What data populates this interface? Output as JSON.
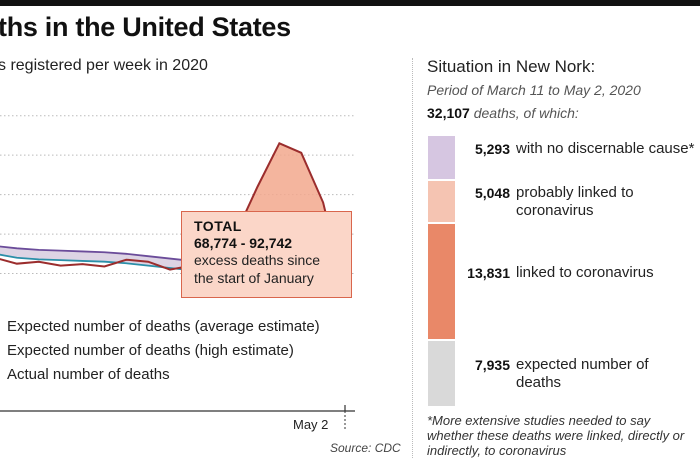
{
  "header": {
    "title": "ths in the United States",
    "subtitle": "s registered per week in 2020"
  },
  "total_box": {
    "title": "TOTAL",
    "range": "68,774 - 92,742",
    "line1": "excess deaths since",
    "line2": "the start of January"
  },
  "legend": [
    {
      "label": "Expected number of deaths (average estimate)",
      "color": "#2a8fa8"
    },
    {
      "label": "Expected number of deaths (high estimate)",
      "color": "#6b4c9a"
    },
    {
      "label": "Actual number of deaths",
      "color": "#9b2d2d"
    }
  ],
  "source": "Source: CDC",
  "chart_data": {
    "type": "line",
    "title": "ths in the United States",
    "subtitle": "s registered per week in 2020",
    "x_ticks": [
      "May 2"
    ],
    "series": [
      {
        "name": "Expected number of deaths (average estimate)",
        "values": [
          55,
          54,
          53.6,
          53.4,
          53.2,
          53,
          52.6,
          52,
          51.4,
          50.8,
          50.2,
          49.4,
          48.6,
          47.8,
          47,
          46,
          45
        ]
      },
      {
        "name": "Expected number of deaths (high estimate)",
        "values": [
          57,
          56.4,
          56,
          55.8,
          55.6,
          55.4,
          55,
          54.4,
          53.8,
          53.2,
          52.6,
          52,
          51.4,
          50.6,
          49.8,
          49,
          48.4
        ]
      },
      {
        "name": "Actual number of deaths",
        "values": [
          54,
          52.5,
          53,
          52,
          52.4,
          51.8,
          53.5,
          53,
          51,
          52,
          54,
          60,
          72,
          83,
          80.6,
          68,
          45
        ]
      }
    ],
    "ylim": [
      40,
      95
    ],
    "grid": true
  },
  "sidebar": {
    "title": "Situation in New Nork:",
    "period": "Period of March 11 to May 2, 2020",
    "total_number": "32,107",
    "total_suffix": " deaths, of which:",
    "breakdown": [
      {
        "value": 5293,
        "number": "5,293",
        "label": "with no discernable cause*",
        "color": "#d6c6e1"
      },
      {
        "value": 5048,
        "number": "5,048",
        "label": "probably linked to coronavirus",
        "color": "#f5c4b2"
      },
      {
        "value": 13831,
        "number": "13,831",
        "label": "linked to coronavirus",
        "color": "#e98868"
      },
      {
        "value": 7935,
        "number": "7,935",
        "label": "expected number of deaths",
        "color": "#d9d9d9"
      }
    ],
    "footnote": "*More extensive studies needed to say whether these deaths were linked, directly or indirectly, to coronavirus"
  }
}
